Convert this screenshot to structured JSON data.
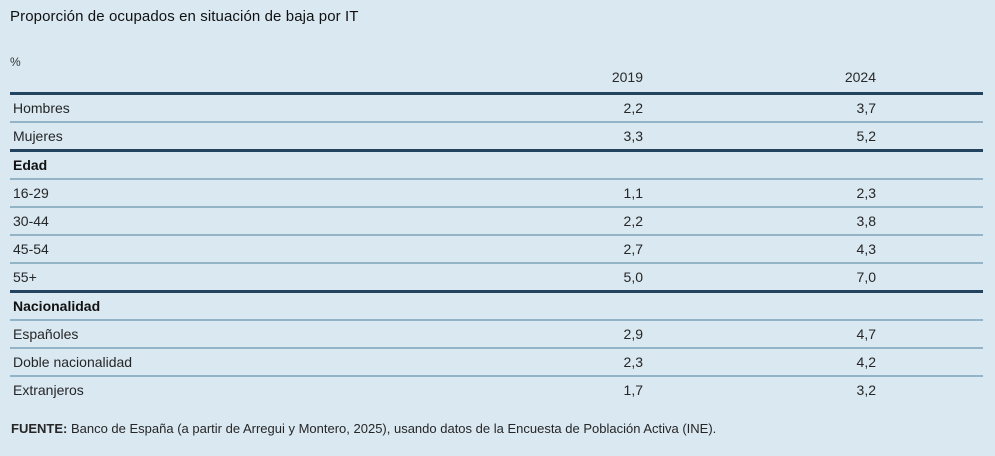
{
  "title": "Proporción de ocupados en situación de baja por IT",
  "unit_label": "%",
  "table": {
    "columns": [
      "2019",
      "2024"
    ],
    "rows": [
      {
        "label": "Hombres",
        "type": "data",
        "values": [
          "2,2",
          "3,7"
        ]
      },
      {
        "label": "Mujeres",
        "type": "data",
        "values": [
          "3,3",
          "5,2"
        ]
      },
      {
        "label": "Edad",
        "type": "section",
        "values": [
          "",
          ""
        ]
      },
      {
        "label": "16-29",
        "type": "data",
        "values": [
          "1,1",
          "2,3"
        ]
      },
      {
        "label": "30-44",
        "type": "data",
        "values": [
          "2,2",
          "3,8"
        ]
      },
      {
        "label": "45-54",
        "type": "data",
        "values": [
          "2,7",
          "4,3"
        ]
      },
      {
        "label": "55+",
        "type": "data",
        "values": [
          "5,0",
          "7,0"
        ]
      },
      {
        "label": "Nacionalidad",
        "type": "section",
        "values": [
          "",
          ""
        ]
      },
      {
        "label": "Españoles",
        "type": "data",
        "values": [
          "2,9",
          "4,7"
        ]
      },
      {
        "label": "Doble nacionalidad",
        "type": "data",
        "values": [
          "2,3",
          "4,2"
        ]
      },
      {
        "label": "Extranjeros",
        "type": "data",
        "values": [
          "1,7",
          "3,2"
        ]
      }
    ]
  },
  "source": {
    "prefix": "FUENTE:",
    "text": " Banco de España (a partir de Arregui y Montero, 2025), usando datos de la Encuesta de Población Activa (INE)."
  },
  "colors": {
    "background": "#d9e8f1",
    "dark_rule": "#23445f",
    "light_rule": "#93b3c7",
    "text": "#262626"
  },
  "chart_data": {
    "type": "table",
    "title": "Proporción de ocupados en situación de baja por IT",
    "unit": "%",
    "columns": [
      "2019",
      "2024"
    ],
    "sections": [
      {
        "name": null,
        "rows": [
          {
            "category": "Hombres",
            "values": [
              2.2,
              3.7
            ]
          },
          {
            "category": "Mujeres",
            "values": [
              3.3,
              5.2
            ]
          }
        ]
      },
      {
        "name": "Edad",
        "rows": [
          {
            "category": "16-29",
            "values": [
              1.1,
              2.3
            ]
          },
          {
            "category": "30-44",
            "values": [
              2.2,
              3.8
            ]
          },
          {
            "category": "45-54",
            "values": [
              2.7,
              4.3
            ]
          },
          {
            "category": "55+",
            "values": [
              5.0,
              7.0
            ]
          }
        ]
      },
      {
        "name": "Nacionalidad",
        "rows": [
          {
            "category": "Españoles",
            "values": [
              2.9,
              4.7
            ]
          },
          {
            "category": "Doble nacionalidad",
            "values": [
              2.3,
              4.2
            ]
          },
          {
            "category": "Extranjeros",
            "values": [
              1.7,
              3.2
            ]
          }
        ]
      }
    ],
    "source": "FUENTE: Banco de España (a partir de Arregui y Montero, 2025), usando datos de la Encuesta de Población Activa (INE)."
  }
}
